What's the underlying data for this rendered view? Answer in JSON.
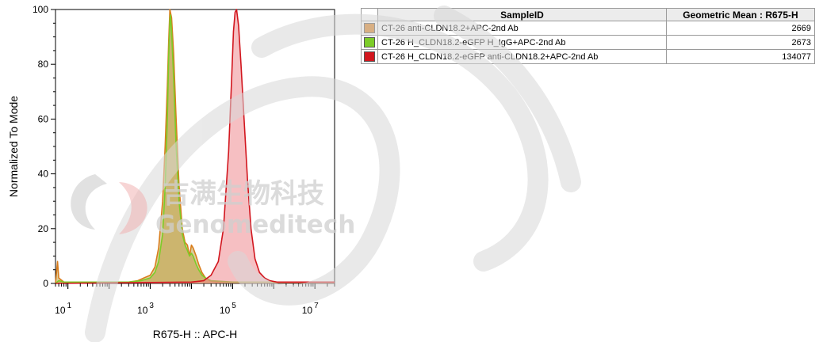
{
  "chart_data": {
    "type": "area",
    "xlabel": "R675-H :: APC-H",
    "ylabel": "Normalized To Mode",
    "xscale": "log",
    "xlim": [
      5,
      30000000
    ],
    "ylim": [
      0,
      100
    ],
    "y_ticks": [
      "0",
      "20",
      "40",
      "60",
      "80",
      "100"
    ],
    "x_ticks": [
      {
        "base": "10",
        "exp": "1",
        "value": 10
      },
      {
        "base": "10",
        "exp": "3",
        "value": 1000
      },
      {
        "base": "10",
        "exp": "5",
        "value": 100000
      },
      {
        "base": "10",
        "exp": "7",
        "value": 10000000
      }
    ],
    "grid": false,
    "legend_position": "right (table)",
    "series": [
      {
        "name": "CT-26 anti-CLDN18.2+APC-2nd Ab",
        "color": "#d97d1c",
        "fill": "#bfa248",
        "x": [
          5,
          5.6,
          6,
          8,
          30,
          100,
          300,
          500,
          700,
          1000,
          1300,
          1600,
          2000,
          2300,
          2600,
          2800,
          3000,
          3300,
          3700,
          4200,
          5000,
          6000,
          7000,
          8000,
          9000,
          10000,
          11000,
          13000,
          15000,
          18000,
          22000,
          28000,
          40000,
          100000,
          1000000,
          30000000
        ],
        "y": [
          0,
          8,
          2,
          0.5,
          0.5,
          0.5,
          0.5,
          1,
          2,
          3,
          6,
          13,
          30,
          50,
          72,
          88,
          100,
          97,
          84,
          62,
          36,
          20,
          15,
          14,
          10,
          14,
          13,
          10,
          7,
          4,
          2,
          1,
          0.5,
          0.5,
          0.5,
          0.5
        ]
      },
      {
        "name": "CT-26 H_CLDN18.2-eGFP H_IgG+APC-2nd Ab",
        "color": "#7ccc28",
        "fill": "#bfa248",
        "x": [
          5,
          6,
          8,
          30,
          100,
          300,
          600,
          1000,
          1300,
          1600,
          2000,
          2300,
          2600,
          2800,
          3000,
          3100,
          3300,
          3700,
          4200,
          5000,
          6000,
          7000,
          8000,
          9000,
          10000,
          11000,
          13000,
          15000,
          18000,
          22000,
          30000,
          100000,
          30000000
        ],
        "y": [
          0,
          1,
          0.5,
          0.5,
          0.5,
          0.5,
          1,
          2,
          4,
          8,
          18,
          35,
          60,
          82,
          96,
          98,
          92,
          75,
          52,
          30,
          18,
          14,
          12,
          10,
          11,
          10,
          7,
          5,
          3,
          2,
          1,
          0.5,
          0.5
        ]
      },
      {
        "name": "CT-26 H_CLDN18.2-eGFP anti-CLDN18.2+APC-2nd Ab",
        "color": "#d2161e",
        "fill": "#ef8a8f",
        "x": [
          5,
          10000,
          20000,
          30000,
          45000,
          60000,
          80000,
          95000,
          105000,
          115000,
          125000,
          140000,
          160000,
          190000,
          230000,
          280000,
          350000,
          450000,
          600000,
          800000,
          1200000,
          30000000
        ],
        "y": [
          0,
          0.5,
          1,
          3,
          8,
          20,
          48,
          75,
          92,
          99,
          100,
          94,
          80,
          60,
          38,
          20,
          9,
          4,
          2,
          1,
          0.5,
          0.5
        ]
      }
    ],
    "table": {
      "headers": [
        "SampleID",
        "Geometric Mean : R675-H"
      ],
      "rows": [
        {
          "color": "#d97d1c",
          "sample": "CT-26 anti-CLDN18.2+APC-2nd Ab",
          "value": "2669"
        },
        {
          "color": "#7ccc28",
          "sample": "CT-26 H_CLDN18.2-eGFP H_IgG+APC-2nd Ab",
          "value": "2673"
        },
        {
          "color": "#d2161e",
          "sample": "CT-26 H_CLDN18.2-eGFP anti-CLDN18.2+APC-2nd Ab",
          "value": "134077"
        }
      ]
    }
  },
  "watermark": {
    "cn_text": "吉满生物科技",
    "en_text": "Genomeditech"
  }
}
